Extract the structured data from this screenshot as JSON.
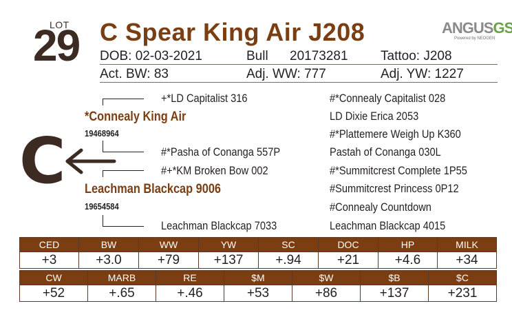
{
  "lot": {
    "label": "LOT",
    "number": "29"
  },
  "animal": {
    "name": "C Spear King Air J208"
  },
  "logo": {
    "brand_main": "ANGUS",
    "brand_suffix": "GS",
    "tagline": "Powered by NEOGEN"
  },
  "details": {
    "dob": "DOB: 02-03-2021",
    "sex": "Bull",
    "reg": "20173281",
    "tattoo": "Tattoo: J208",
    "act_bw": "Act. BW: 83",
    "adj_ww": "Adj. WW: 777",
    "adj_yw": "Adj. YW: 1227"
  },
  "pedigree": {
    "sire": "*Connealy King Air",
    "sire_reg": "19468964",
    "sire_sire": "+*LD Capitalist 316",
    "sire_dam": "#*Pasha of Conanga 557P",
    "dam": "Leachman Blackcap 9006",
    "dam_reg": "19654584",
    "dam_sire": "#+*KM Broken Bow 002",
    "dam_dam": "Leachman Blackcap 7033",
    "col3": [
      "#*Connealy Capitalist 028",
      "LD Dixie Erica 2053",
      "#*Plattemere Weigh Up K360",
      "Pastah of Conanga 030L",
      "#*Summitcrest Complete 1P55",
      "#Summitcrest Princess 0P12",
      "#Connealy Countdown",
      "Leachman Blackcap 4015"
    ]
  },
  "brand_mark": "C",
  "epd_row1": {
    "headers": [
      "CED",
      "BW",
      "WW",
      "YW",
      "SC",
      "DOC",
      "HP",
      "MILK"
    ],
    "values": [
      "+3",
      "+3.0",
      "+79",
      "+137",
      "+.94",
      "+21",
      "+4.6",
      "+34"
    ]
  },
  "epd_row2": {
    "headers": [
      "CW",
      "MARB",
      "RE",
      "$M",
      "$W",
      "$B",
      "$C"
    ],
    "values": [
      "+52",
      "+.65",
      "+.46",
      "+53",
      "+86",
      "+137",
      "+231"
    ]
  }
}
